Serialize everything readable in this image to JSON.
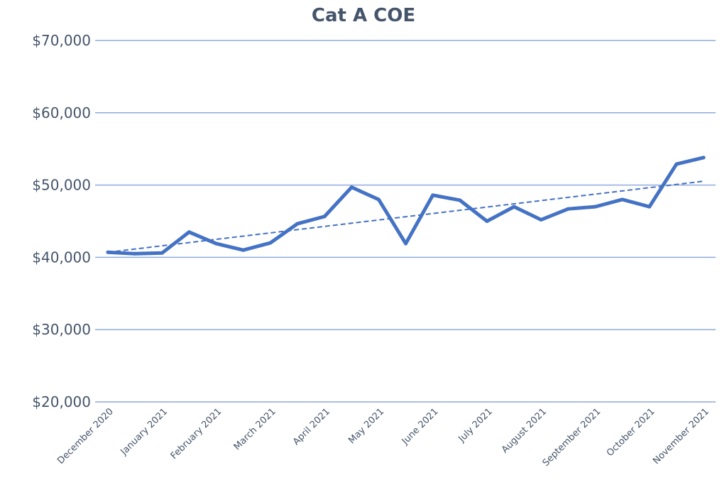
{
  "chart_data": {
    "type": "line",
    "title": "Cat A COE",
    "xlabel": "",
    "ylabel": "",
    "ylim": [
      20000,
      70000
    ],
    "yticks": [
      20000,
      30000,
      40000,
      50000,
      60000,
      70000
    ],
    "ytick_labels": [
      "$20,000",
      "$30,000",
      "$40,000",
      "$50,000",
      "$60,000",
      "$70,000"
    ],
    "grid": true,
    "x_tick_labels": [
      "December 2020",
      "January 2021",
      "February 2021",
      "March 2021",
      "April 2021",
      "May 2021",
      "June 2021",
      "July 2021",
      "August 2021",
      "September 2021",
      "October 2021",
      "November 2021"
    ],
    "series": [
      {
        "name": "Cat A COE",
        "color": "#4472C4",
        "values": [
          40700,
          40500,
          40600,
          43500,
          41900,
          41000,
          42000,
          44650,
          45650,
          49700,
          48000,
          41900,
          48600,
          47900,
          45000,
          47000,
          45200,
          46700,
          47000,
          48000,
          47000,
          52900,
          53800
        ]
      }
    ],
    "trendline": {
      "type": "linear",
      "style": "dashed",
      "color": "#4472C4"
    }
  }
}
